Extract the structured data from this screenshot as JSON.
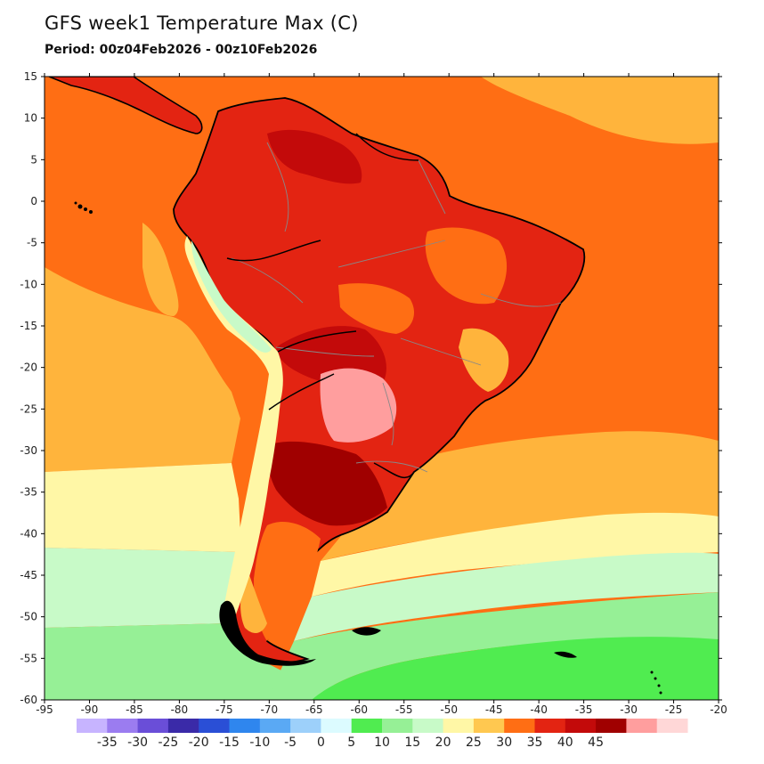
{
  "title": "GFS week1 Temperature Max (C)",
  "subtitle": "Period: 00z04Feb2026 - 00z10Feb2026",
  "lon_ticks": [
    "-95",
    "-90",
    "-85",
    "-80",
    "-75",
    "-70",
    "-65",
    "-60",
    "-55",
    "-50",
    "-45",
    "-40",
    "-35",
    "-30",
    "-25",
    "-20"
  ],
  "lat_ticks": [
    "15",
    "10",
    "5",
    "0",
    "-5",
    "-10",
    "-15",
    "-20",
    "-25",
    "-30",
    "-35",
    "-40",
    "-45",
    "-50",
    "-55",
    "-60"
  ],
  "colorbar": {
    "colors": [
      "#c7b4ff",
      "#9b7cf0",
      "#6a4ed8",
      "#3a2aa8",
      "#2a4fd6",
      "#2f86ee",
      "#5aa9f4",
      "#9dd0fa",
      "#dcfbff",
      "#50ec50",
      "#96f096",
      "#c8fac8",
      "#fff7a6",
      "#ffc850",
      "#ff6e14",
      "#e32412",
      "#c30a0a",
      "#a00000",
      "#ff9e9e",
      "#ffd7d7"
    ],
    "labels": [
      "-35",
      "-30",
      "-25",
      "-20",
      "-15",
      "-10",
      "-5",
      "0",
      "5",
      "10",
      "15",
      "20",
      "25",
      "30",
      "35",
      "40",
      "45"
    ]
  },
  "map_colors": {
    "ocean_warm": "#ff6e14",
    "ocean_mild": "#ffb43c",
    "ocean_cool": "#fff7a6",
    "ocean_cold": "#c8fac8",
    "ocean_colder": "#96f096",
    "ocean_coldest": "#50ec50",
    "land_hot": "#e32412",
    "land_very_hot": "#a00000",
    "land_extreme": "#ff9e9e",
    "andes_cool": "#c8fac8",
    "coastline": "#000000",
    "borders": "#888888"
  }
}
